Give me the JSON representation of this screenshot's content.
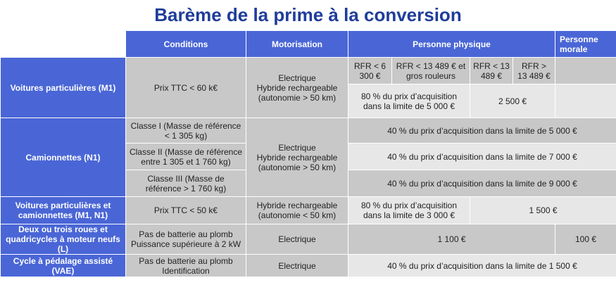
{
  "title": "Barème de la prime à la conversion",
  "header": {
    "conditions": "Conditions",
    "motorisation": "Motorisation",
    "personne_physique": "Personne physique",
    "personne_morale": "Personne morale",
    "rfr": [
      "RFR < 6 300 €",
      "RFR < 13 489 € et gros rouleurs",
      "RFR < 13 489 €",
      "RFR > 13 489 €"
    ]
  },
  "rows": {
    "m1": {
      "category": "Voitures particulières (M1)",
      "condition": "Prix TTC < 60 k€",
      "motorisation": "Electrique\nHybride rechargeable\n(autonomie > 50 km)",
      "pp_low": "80 % du prix d’acquisition dans la limite de 5 000 €",
      "pp_high": "2 500 €"
    },
    "n1": {
      "category": "Camionnettes (N1)",
      "classes": [
        {
          "condition": "Classe I (Masse de référence < 1 305 kg)",
          "value": "40 % du prix d’acquisition dans la limite de 5 000 €"
        },
        {
          "condition": "Classe II (Masse de référence entre 1 305 et 1 760 kg)",
          "value": "40 % du prix d’acquisition dans la limite de 7 000 €"
        },
        {
          "condition": "Classe III (Masse de référence > 1 760 kg)",
          "value": "40 % du prix d’acquisition dans la limite de 9 000 €"
        }
      ],
      "motorisation": "Electrique\nHybride rechargeable\n(autonomie > 50 km)"
    },
    "m1n1": {
      "category": "Voitures particulières et camionnettes (M1, N1)",
      "condition": "Prix TTC < 50 k€",
      "motorisation": "Hybride rechargeable\n(autonomie < 50 km)",
      "pp_low": "80 % du prix d’acquisition dans la limite de 3 000 €",
      "pp_high": "1 500 €"
    },
    "l": {
      "category": "Deux ou trois roues et quadricycles à moteur neufs (L)",
      "condition": "Pas de batterie au plomb\nPuissance supérieure à 2 kW",
      "motorisation": "Electrique",
      "pp": "1 100 €",
      "pm": "100 €"
    },
    "vae": {
      "category": "Cycle à pédalage assisté (VAE)",
      "condition": "Pas de batterie au plomb\nIdentification",
      "motorisation": "Electrique",
      "value": "40 % du prix d’acquisition dans la limite de 1 500 €"
    }
  }
}
